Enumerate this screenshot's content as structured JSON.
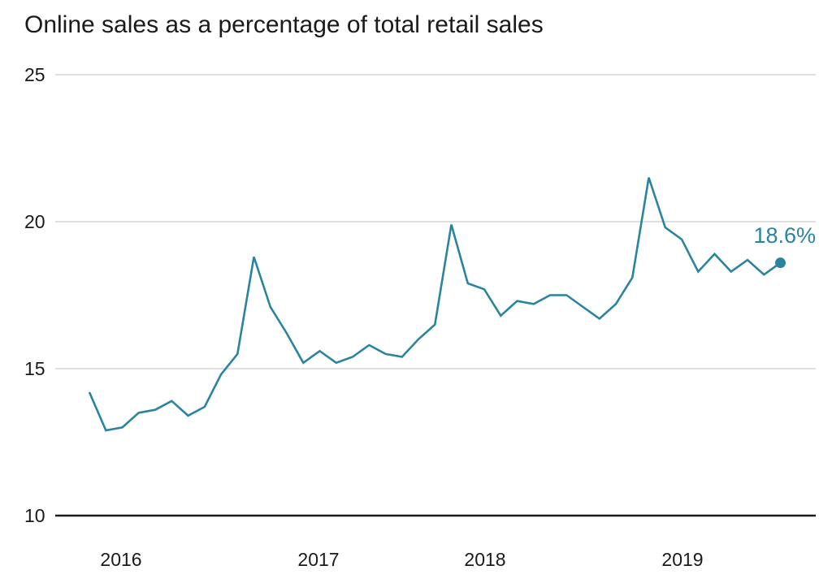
{
  "chart_data": {
    "type": "line",
    "title": "Online sales as a percentage of total retail sales",
    "xlabel": "",
    "ylabel": "",
    "ylim": [
      10,
      25
    ],
    "y_ticks": [
      10,
      15,
      20,
      25
    ],
    "x_tick_labels": [
      "2016",
      "2017",
      "2018",
      "2019"
    ],
    "grid": true,
    "line_color": "#2a84a0",
    "axis_color": "#1a1a1a",
    "grid_color": "#cccccc",
    "end_label": "18.6%",
    "series": [
      {
        "values": [
          14.2,
          12.9,
          13.0,
          13.5,
          13.6,
          13.9,
          13.4,
          13.7,
          14.8,
          15.5,
          18.8,
          17.1,
          16.2,
          15.2,
          15.6,
          15.2,
          15.4,
          15.8,
          15.5,
          15.4,
          16.0,
          16.5,
          19.9,
          17.9,
          17.7,
          16.8,
          17.3,
          17.2,
          17.5,
          17.5,
          17.1,
          16.7,
          17.2,
          18.1,
          21.5,
          19.8,
          19.4,
          18.3,
          18.9,
          18.3,
          18.7,
          18.2,
          18.6
        ]
      }
    ]
  }
}
